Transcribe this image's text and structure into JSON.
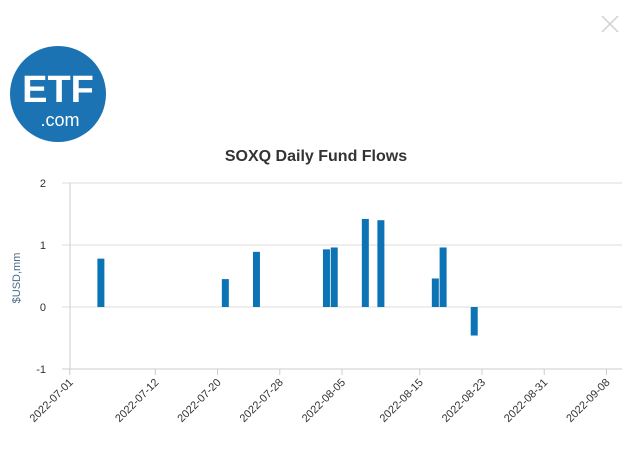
{
  "logo": {
    "main_text": "ETF",
    "sub_text": ".com",
    "bg_color": "#1b73b3",
    "text_color": "#ffffff"
  },
  "close": {
    "icon": "close-icon"
  },
  "colors": {
    "bar": "#0c73b5",
    "grid": "#dddddd",
    "axis_text": "#333333",
    "ylabel": "#4a6b8a"
  },
  "chart_data": {
    "type": "bar",
    "title": "SOXQ Daily Fund Flows",
    "xlabel": "",
    "ylabel": "$USD,mm",
    "ylim": [
      -1,
      2
    ],
    "yticks": [
      -1,
      0,
      1,
      2
    ],
    "xlim": [
      "2022-06-30",
      "2022-09-10"
    ],
    "xticks": [
      "2022-07-01",
      "2022-07-12",
      "2022-07-20",
      "2022-07-28",
      "2022-08-05",
      "2022-08-15",
      "2022-08-23",
      "2022-08-31",
      "2022-09-08"
    ],
    "xtick_labels": [
      "2022-07-01",
      "2022-07-12",
      "2022-07-20",
      "2022-07-28",
      "2022-08-05",
      "2022-08-15",
      "2022-08-23",
      "2022-08-31",
      "2022-09-08"
    ],
    "grid": true,
    "series": [
      {
        "name": "SOXQ",
        "points": [
          {
            "date": "2022-07-05",
            "value": 0.78
          },
          {
            "date": "2022-07-21",
            "value": 0.45
          },
          {
            "date": "2022-07-25",
            "value": 0.89
          },
          {
            "date": "2022-08-03",
            "value": 0.93
          },
          {
            "date": "2022-08-04",
            "value": 0.96
          },
          {
            "date": "2022-08-08",
            "value": 1.42
          },
          {
            "date": "2022-08-10",
            "value": 1.4
          },
          {
            "date": "2022-08-17",
            "value": 0.46
          },
          {
            "date": "2022-08-18",
            "value": 0.96
          },
          {
            "date": "2022-08-22",
            "value": -0.46
          }
        ]
      }
    ]
  }
}
